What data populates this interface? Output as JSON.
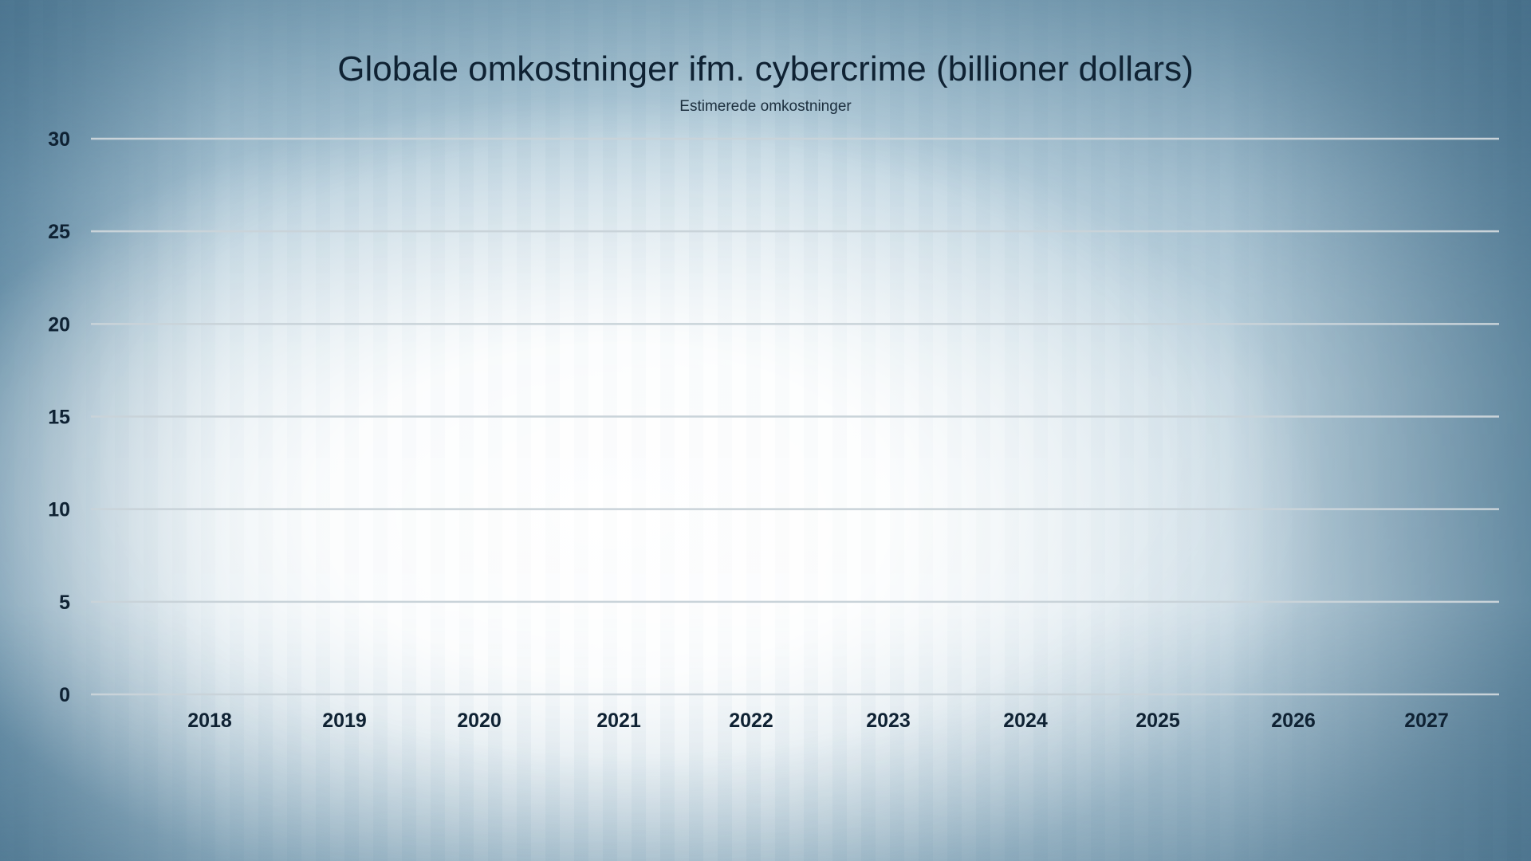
{
  "chart_data": {
    "type": "bar",
    "title": "Globale omkostninger ifm. cybercrime (billioner dollars)",
    "subtitle": "Estimerede omkostninger",
    "xlabel": "",
    "ylabel": "",
    "categories": [
      "2018",
      "2019",
      "2020",
      "2021",
      "2022",
      "2023",
      "2024",
      "2025",
      "2026",
      "2027"
    ],
    "series": [],
    "ylim": [
      0,
      30
    ],
    "yticks": [
      "0",
      "5",
      "10",
      "15",
      "20",
      "25",
      "30"
    ],
    "grid": true,
    "colors": {
      "gridline": "#c9d3d9",
      "text": "#0f2233"
    }
  }
}
